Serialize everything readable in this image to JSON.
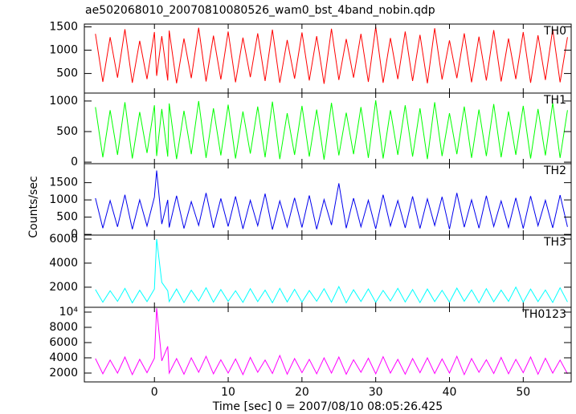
{
  "title": "ae502068010_20070810080526_wam0_bst_4band_nobin.qdp",
  "y_label": "Counts/sec",
  "x_label": "Time [sec] 0 = 2007/08/10 08:05:26.425",
  "xlim": [
    -9.5,
    56.5
  ],
  "xticks": [
    0,
    10,
    20,
    30,
    40,
    50
  ],
  "x": [
    -8,
    -7,
    -6,
    -5,
    -4,
    -3,
    -2,
    -1,
    0,
    0.3,
    1,
    1.8,
    2,
    3,
    4,
    5,
    6,
    7,
    8,
    9,
    10,
    11,
    12,
    13,
    14,
    15,
    16,
    17,
    18,
    19,
    20,
    21,
    22,
    23,
    24,
    25,
    26,
    27,
    28,
    29,
    30,
    31,
    32,
    33,
    34,
    35,
    36,
    37,
    38,
    39,
    40,
    41,
    42,
    43,
    44,
    45,
    46,
    47,
    48,
    49,
    50,
    51,
    52,
    53,
    54,
    55,
    56
  ],
  "chart_data": [
    {
      "type": "line",
      "name": "TH0",
      "color": "#ff0000",
      "ylim": [
        80,
        1560
      ],
      "yticks": [
        500,
        1000,
        1500
      ],
      "values": [
        1350,
        320,
        1280,
        410,
        1450,
        300,
        1200,
        380,
        1390,
        450,
        1300,
        350,
        1420,
        290,
        1250,
        400,
        1480,
        330,
        1310,
        370,
        1400,
        310,
        1270,
        420,
        1360,
        340,
        1440,
        300,
        1220,
        390,
        1380,
        350,
        1300,
        280,
        1460,
        360,
        1240,
        410,
        1350,
        320,
        1500,
        300,
        1260,
        380,
        1400,
        340,
        1330,
        290,
        1470,
        370,
        1210,
        400,
        1360,
        310,
        1290,
        350,
        1430,
        330,
        1250,
        380,
        1390,
        300,
        1320,
        360,
        1450,
        310,
        1280
      ]
    },
    {
      "type": "line",
      "name": "TH1",
      "color": "#00ff00",
      "ylim": [
        -25,
        1130
      ],
      "yticks": [
        0,
        500,
        1000
      ],
      "values": [
        900,
        80,
        850,
        120,
        980,
        60,
        820,
        150,
        930,
        100,
        870,
        90,
        960,
        50,
        840,
        130,
        1000,
        70,
        880,
        110,
        940,
        60,
        830,
        140,
        910,
        80,
        990,
        50,
        800,
        120,
        920,
        90,
        860,
        40,
        970,
        110,
        810,
        130,
        900,
        70,
        1010,
        60,
        850,
        120,
        930,
        90,
        880,
        50,
        980,
        100,
        800,
        130,
        910,
        70,
        860,
        100,
        950,
        80,
        830,
        120,
        920,
        60,
        870,
        110,
        970,
        70,
        850
      ]
    },
    {
      "type": "line",
      "name": "TH2",
      "color": "#0000ee",
      "ylim": [
        -20,
        2050
      ],
      "yticks": [
        0,
        500,
        1000,
        1500
      ],
      "values": [
        1050,
        180,
        980,
        220,
        1150,
        150,
        1000,
        240,
        1080,
        1850,
        300,
        1000,
        200,
        1120,
        170,
        950,
        260,
        1200,
        190,
        1040,
        230,
        1100,
        160,
        990,
        250,
        1180,
        140,
        970,
        210,
        1060,
        200,
        1130,
        150,
        1010,
        270,
        1480,
        180,
        1050,
        220,
        990,
        160,
        1150,
        240,
        980,
        190,
        1100,
        170,
        1030,
        260,
        1090,
        150,
        1200,
        210,
        1000,
        180,
        1120,
        230,
        970,
        200,
        1060,
        170,
        1110,
        250,
        990,
        190,
        1140,
        220
      ]
    },
    {
      "type": "line",
      "name": "TH3",
      "color": "#00ffff",
      "ylim": [
        330,
        6330
      ],
      "yticks": [
        2000,
        4000,
        6000
      ],
      "values": [
        1800,
        750,
        1700,
        820,
        1900,
        700,
        1750,
        800,
        1850,
        6000,
        2400,
        1700,
        800,
        1850,
        720,
        1750,
        850,
        1950,
        760,
        1800,
        820,
        1700,
        740,
        1880,
        800,
        1760,
        710,
        1900,
        780,
        1820,
        750,
        1720,
        830,
        1870,
        760,
        2050,
        700,
        1790,
        810,
        1860,
        740,
        1730,
        850,
        1900,
        770,
        1800,
        720,
        1850,
        800,
        1740,
        760,
        1920,
        830,
        1780,
        710,
        1880,
        790,
        1760,
        820,
        2000,
        750,
        1850,
        800,
        1770,
        730,
        1950,
        780
      ]
    },
    {
      "type": "line",
      "name": "TH0123",
      "color": "#ff00ff",
      "ylim": [
        840,
        10630
      ],
      "yticks": [
        2000,
        4000,
        6000,
        8000,
        {
          "value": 10000,
          "label": "10⁴"
        }
      ],
      "values": [
        3900,
        1900,
        3700,
        2000,
        4100,
        1800,
        3800,
        2050,
        3950,
        10500,
        3600,
        5500,
        2000,
        3900,
        1850,
        4000,
        2100,
        4200,
        1900,
        3750,
        2000,
        3850,
        1800,
        4050,
        2100,
        3700,
        1950,
        4300,
        1850,
        3900,
        2050,
        3800,
        1900,
        4000,
        2000,
        4100,
        1850,
        3750,
        2100,
        3950,
        1900,
        4150,
        2000,
        3800,
        1850,
        3900,
        2050,
        4000,
        1950,
        3850,
        2000,
        4200,
        1800,
        3900,
        2100,
        3750,
        1950,
        4050,
        1900,
        3800,
        2050,
        4100,
        1850,
        3950,
        2000,
        3700,
        1900
      ]
    }
  ]
}
